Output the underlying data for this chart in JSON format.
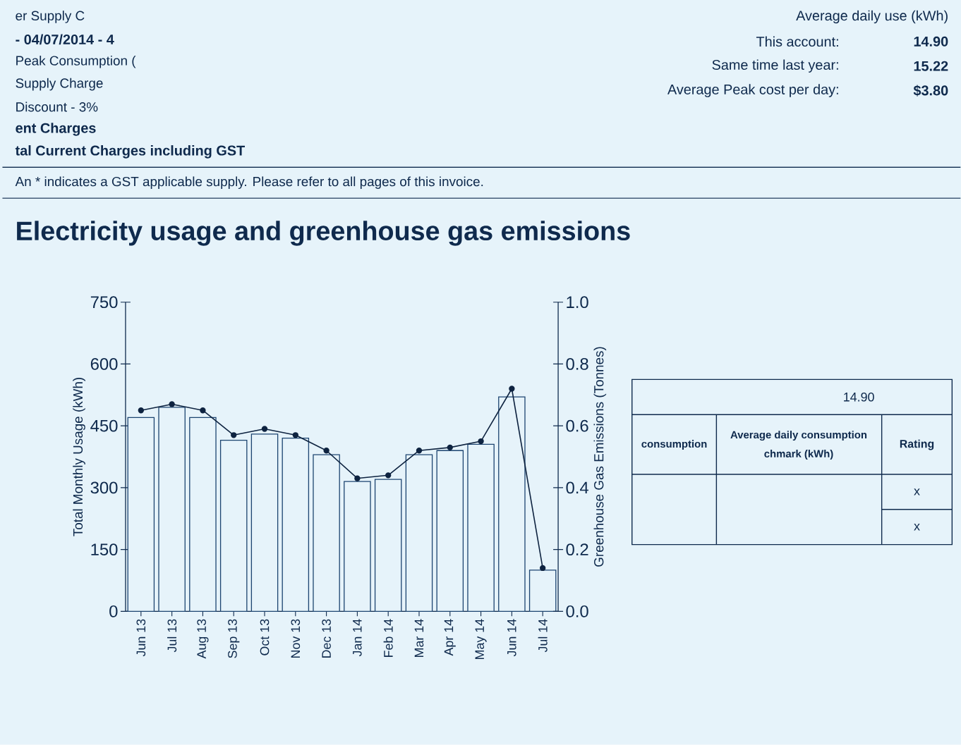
{
  "chart_data": {
    "type": "bar",
    "title": "Electricity usage and greenhouse gas emissions",
    "ylabel": "Total Monthly Usage (kWh)",
    "y2label": "Greenhouse Gas Emissions (Tonnes)",
    "categories": [
      "Jun 13",
      "Jul 13",
      "Aug 13",
      "Sep 13",
      "Oct 13",
      "Nov 13",
      "Dec 13",
      "Jan 14",
      "Feb 14",
      "Mar 14",
      "Apr 14",
      "May 14",
      "Jun 14",
      "Jul 14"
    ],
    "series": [
      {
        "color": "#1c4470",
        "values": [
          470,
          495,
          470,
          415,
          430,
          420,
          380,
          315,
          320,
          380,
          390,
          405,
          520,
          100
        ]
      },
      {
        "type": "line",
        "axis": "y2",
        "color": "#0e2340",
        "values": [
          0.65,
          0.67,
          0.65,
          0.57,
          0.59,
          0.57,
          0.52,
          0.43,
          0.44,
          0.52,
          0.53,
          0.55,
          0.72,
          0.14
        ]
      }
    ],
    "ylim": [
      0,
      750
    ],
    "yticks": [
      0,
      150,
      300,
      450,
      600,
      750
    ],
    "y2lim": [
      0,
      1
    ],
    "y2ticks": [
      {
        "value": 0,
        "label": "0.0"
      },
      0.2,
      0.4,
      0.6,
      0.8,
      {
        "value": 1,
        "label": "1.0"
      }
    ],
    "marker": "circle",
    "annotations": [
      "er Supply C",
      "- 04/07/2014 - 4",
      "Peak Consumption (",
      "Supply Charge",
      "Discount - 3%",
      "ent Charges",
      "tal Current Charges including GST",
      "An * indicates a GST applicable supply. Please refer to all pages of this invoice.",
      "Average daily use (kWh)",
      "This account:",
      "14.90",
      "Same time last year:",
      "15.22",
      "Average Peak cost per day:",
      "$3.80",
      "14.90",
      "consumption",
      "Average daily consumption",
      "chmark (kWh)",
      "Rating",
      "x",
      "x"
    ]
  }
}
